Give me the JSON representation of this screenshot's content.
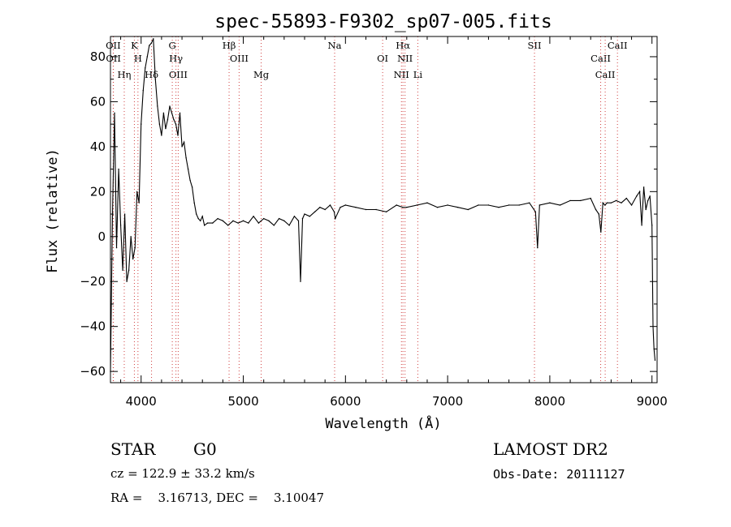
{
  "chart_data": {
    "type": "line",
    "title": "spec-55893-F9302_sp07-005.fits",
    "xlabel": "Wavelength (Å)",
    "ylabel": "Flux (relative)",
    "xlim": [
      3700,
      9050
    ],
    "ylim": [
      -65,
      89
    ],
    "xticks": [
      4000,
      5000,
      6000,
      7000,
      8000,
      9000
    ],
    "yticks": [
      -60,
      -40,
      -20,
      0,
      20,
      40,
      60,
      80
    ],
    "grid": false,
    "series": [
      {
        "x": [
          3700,
          3720,
          3740,
          3760,
          3780,
          3800,
          3820,
          3840,
          3860,
          3880,
          3900,
          3920,
          3940,
          3960,
          3980,
          4000,
          4020,
          4040,
          4060,
          4080,
          4100,
          4120,
          4140,
          4160,
          4180,
          4200,
          4220,
          4240,
          4260,
          4280,
          4300,
          4320,
          4340,
          4360,
          4380,
          4400,
          4420,
          4440,
          4460,
          4480,
          4500,
          4520,
          4540,
          4560,
          4580,
          4600,
          4620,
          4650,
          4700,
          4750,
          4800,
          4850,
          4900,
          4950,
          5000,
          5050,
          5100,
          5150,
          5200,
          5250,
          5300,
          5350,
          5400,
          5450,
          5500,
          5540,
          5560,
          5580,
          5600,
          5650,
          5700,
          5750,
          5800,
          5850,
          5890,
          5900,
          5950,
          6000,
          6100,
          6200,
          6300,
          6400,
          6500,
          6560,
          6600,
          6700,
          6800,
          6900,
          7000,
          7100,
          7200,
          7300,
          7400,
          7500,
          7600,
          7700,
          7800,
          7860,
          7880,
          7900,
          8000,
          8100,
          8200,
          8300,
          8400,
          8450,
          8480,
          8500,
          8520,
          8540,
          8560,
          8600,
          8650,
          8700,
          8750,
          8800,
          8850,
          8880,
          8900,
          8920,
          8940,
          8960,
          8980,
          9000,
          9010,
          9020,
          9030
        ],
        "y": [
          -60,
          10,
          55,
          -5,
          30,
          5,
          -15,
          10,
          -20,
          -15,
          0,
          -10,
          -5,
          20,
          15,
          50,
          65,
          75,
          80,
          85,
          86,
          88,
          70,
          58,
          50,
          45,
          55,
          48,
          52,
          58,
          55,
          52,
          50,
          45,
          55,
          40,
          42,
          35,
          30,
          25,
          22,
          15,
          10,
          8,
          7,
          9,
          5,
          6,
          6,
          8,
          7,
          5,
          7,
          6,
          7,
          6,
          9,
          6,
          8,
          7,
          5,
          8,
          7,
          5,
          9,
          7,
          -20,
          8,
          10,
          9,
          11,
          13,
          12,
          14,
          11,
          8,
          13,
          14,
          13,
          12,
          12,
          11,
          14,
          13,
          13,
          14,
          15,
          13,
          14,
          13,
          12,
          14,
          14,
          13,
          14,
          14,
          15,
          11,
          -5,
          14,
          15,
          14,
          16,
          16,
          17,
          12,
          10,
          2,
          15,
          14,
          15,
          15,
          16,
          15,
          17,
          14,
          18,
          20,
          5,
          22,
          12,
          16,
          18,
          5,
          -40,
          -50,
          -55
        ]
      }
    ],
    "annotations": {
      "lines": [
        {
          "label": "OII",
          "x": 3727
        },
        {
          "label": "OII",
          "x": 3729
        },
        {
          "label": "Hη",
          "x": 3835
        },
        {
          "label": "K",
          "x": 3934
        },
        {
          "label": "H",
          "x": 3969
        },
        {
          "label": "Hδ",
          "x": 4102
        },
        {
          "label": "G",
          "x": 4305
        },
        {
          "label": "Hγ",
          "x": 4341
        },
        {
          "label": "OIII",
          "x": 4363
        },
        {
          "label": "Hβ",
          "x": 4861
        },
        {
          "label": "OIII",
          "x": 4959
        },
        {
          "label": "Mg",
          "x": 5175
        },
        {
          "label": "Na",
          "x": 5894
        },
        {
          "label": "OI",
          "x": 6364
        },
        {
          "label": "NII",
          "x": 6548
        },
        {
          "label": "Hα",
          "x": 6563
        },
        {
          "label": "NII",
          "x": 6583
        },
        {
          "label": "Li",
          "x": 6708
        },
        {
          "label": "SII",
          "x": 7850
        },
        {
          "label": "CaII",
          "x": 8498
        },
        {
          "label": "CaII",
          "x": 8542
        },
        {
          "label": "CaII",
          "x": 8662
        }
      ]
    }
  },
  "info": {
    "class_label": "STAR",
    "subclass_label": "G0",
    "survey": "LAMOST DR2",
    "cz": "cz = 122.9 ± 33.2 km/s",
    "obs_date": "Obs-Date: 20111127",
    "coords": "RA =    3.16713, DEC =    3.10047"
  }
}
